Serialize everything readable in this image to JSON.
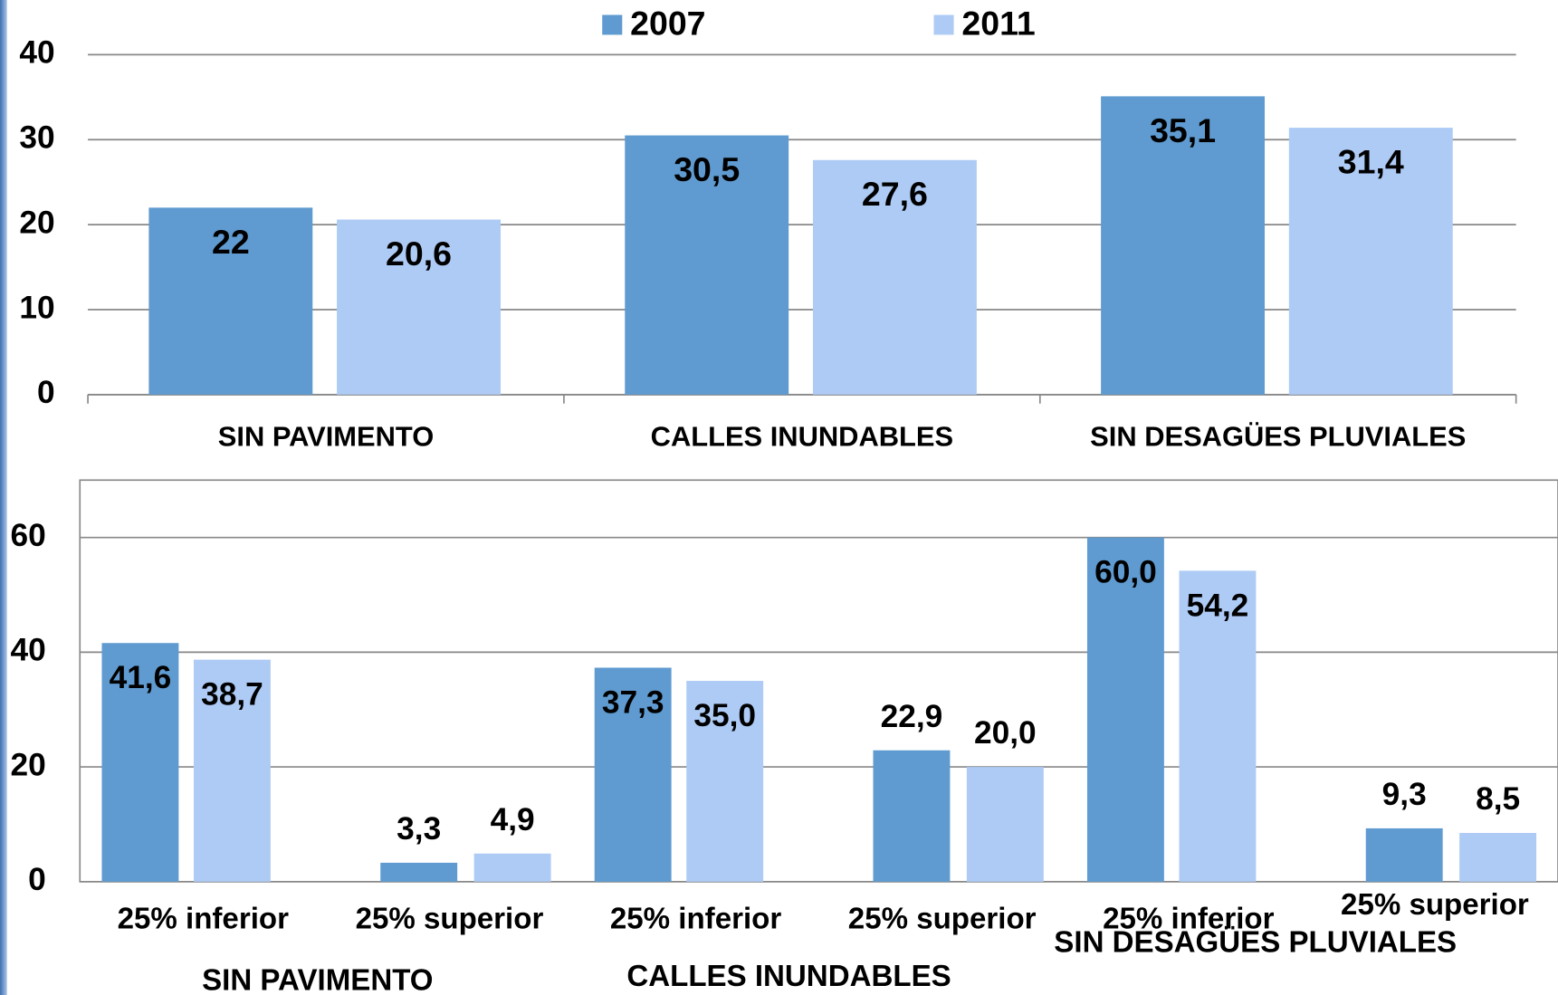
{
  "chart_data": [
    {
      "type": "bar",
      "categories": [
        "SIN PAVIMENTO",
        "CALLES INUNDABLES",
        "SIN DESAGÜES PLUVIALES"
      ],
      "series": [
        {
          "name": "2007",
          "color": "#5f9bd0",
          "values": [
            22,
            30.5,
            35.1
          ],
          "value_labels": [
            "22",
            "30,5",
            "35,1"
          ]
        },
        {
          "name": "2011",
          "color": "#aecbf5",
          "values": [
            20.6,
            27.6,
            31.4
          ],
          "value_labels": [
            "20,6",
            "27,6",
            "31,4"
          ]
        }
      ],
      "ylim": [
        0,
        40
      ],
      "yticks": [
        0,
        10,
        20,
        30,
        40
      ],
      "grid": true,
      "legend": "top"
    },
    {
      "type": "bar",
      "categories": [
        "25% inferior",
        "25% superior",
        "25% inferior",
        "25% superior",
        "25% inferior",
        "25% superior"
      ],
      "groups": [
        "SIN PAVIMENTO",
        "CALLES INUNDABLES",
        "SIN DESAGÜES PLUVIALES"
      ],
      "series": [
        {
          "color": "#5f9bd0",
          "values": [
            41.6,
            3.3,
            37.3,
            22.9,
            60.0,
            9.3
          ],
          "value_labels": [
            "41,6",
            "3,3",
            "37,3",
            "22,9",
            "60,0",
            "9,3"
          ]
        },
        {
          "color": "#aecbf5",
          "values": [
            38.7,
            4.9,
            35.0,
            20.0,
            54.2,
            8.5
          ],
          "value_labels": [
            "38,7",
            "4,9",
            "35,0",
            "20,0",
            "54,2",
            "8,5"
          ]
        }
      ],
      "ylim": [
        0,
        70
      ],
      "yticks": [
        0,
        20,
        40,
        60
      ],
      "grid": true
    }
  ]
}
